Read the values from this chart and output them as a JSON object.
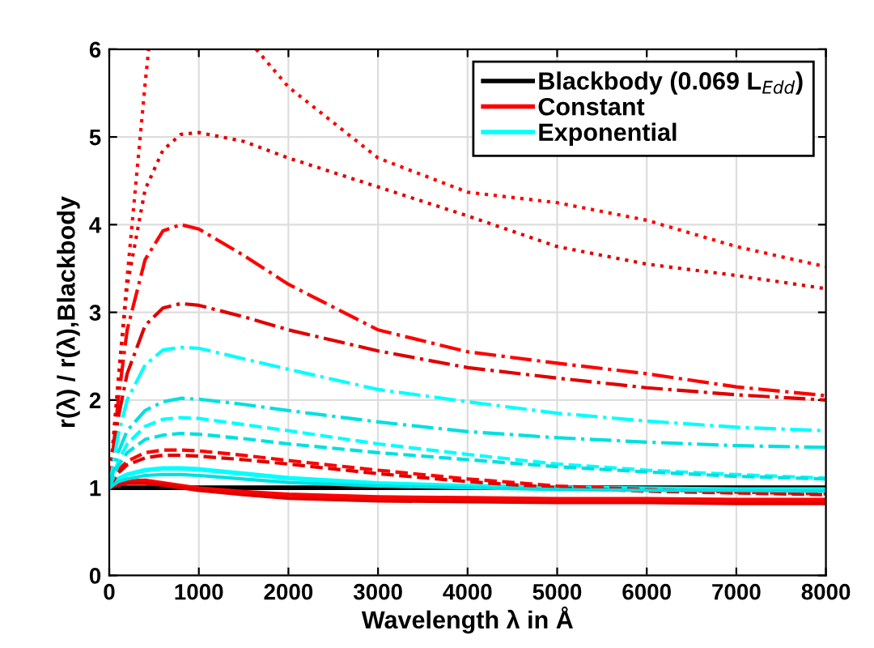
{
  "chart_data": {
    "type": "line",
    "xlabel": "Wavelength λ in Å",
    "ylabel": "r(λ) / r(λ),Blackbody",
    "x": [
      0,
      100,
      200,
      400,
      600,
      800,
      1000,
      1500,
      2000,
      3000,
      4000,
      5000,
      6000,
      7000,
      8000
    ],
    "xlim": [
      0,
      8000
    ],
    "xticks": [
      0,
      1000,
      2000,
      3000,
      4000,
      5000,
      6000,
      7000,
      8000
    ],
    "ylim": [
      0,
      6
    ],
    "yticks": [
      0,
      1,
      2,
      3,
      4,
      5,
      6
    ],
    "grid": true,
    "legend": "top right",
    "series": [
      {
        "name": "Blackbody (0.069 L$_{Edd}$)",
        "color": "#000000",
        "line_style": "solid",
        "values": [
          1,
          1,
          1,
          1,
          1,
          1,
          1,
          1,
          1,
          1,
          1,
          1,
          1,
          1,
          1
        ]
      },
      {
        "name": "Constant",
        "color": "#ff0000",
        "line_style": "solid",
        "values": [
          1,
          1.05,
          1.07,
          1.08,
          1.05,
          1.02,
          0.99,
          0.95,
          0.92,
          0.89,
          0.88,
          0.87,
          0.87,
          0.86,
          0.86
        ]
      },
      {
        "name": "Exponential",
        "color": "#00ffff",
        "line_style": "solid",
        "values": [
          1,
          1.1,
          1.15,
          1.2,
          1.22,
          1.22,
          1.21,
          1.16,
          1.11,
          1.05,
          1.02,
          1.0,
          0.99,
          0.98,
          0.98
        ]
      },
      {
        "color": "#e00000",
        "line_style": "solid",
        "values": [
          1,
          1.03,
          1.05,
          1.05,
          1.03,
          1.0,
          0.97,
          0.92,
          0.88,
          0.85,
          0.84,
          0.83,
          0.83,
          0.82,
          0.82
        ]
      },
      {
        "color": "#ff0000",
        "line_style": "dashed",
        "values": [
          1,
          1.2,
          1.3,
          1.4,
          1.43,
          1.43,
          1.42,
          1.37,
          1.31,
          1.2,
          1.1,
          1.02,
          0.98,
          0.95,
          0.93
        ]
      },
      {
        "color": "#e00000",
        "line_style": "dashed",
        "values": [
          1,
          1.17,
          1.26,
          1.34,
          1.37,
          1.37,
          1.36,
          1.32,
          1.27,
          1.16,
          1.07,
          1.0,
          0.96,
          0.94,
          0.92
        ]
      },
      {
        "color": "#ff0000",
        "line_style": "dashdot",
        "values": [
          1,
          2.0,
          2.8,
          3.6,
          3.93,
          4.0,
          3.95,
          3.65,
          3.32,
          2.8,
          2.55,
          2.42,
          2.3,
          2.15,
          2.05
        ]
      },
      {
        "color": "#e00000",
        "line_style": "dashdot",
        "values": [
          1,
          1.8,
          2.3,
          2.85,
          3.05,
          3.1,
          3.08,
          2.95,
          2.8,
          2.56,
          2.37,
          2.25,
          2.14,
          2.06,
          2.0
        ]
      },
      {
        "color": "#ff0000",
        "line_style": "dotted",
        "x": [
          0,
          100,
          200,
          300,
          400,
          440,
          1000,
          1640,
          2000,
          3000,
          4000,
          5000,
          6000,
          7000,
          8000
        ],
        "values": [
          1,
          2.2,
          3.4,
          4.5,
          5.6,
          6.0,
          null,
          6.0,
          5.57,
          4.76,
          4.37,
          4.25,
          4.05,
          3.75,
          3.52
        ]
      },
      {
        "color": "#e00000",
        "line_style": "dotted",
        "values": [
          1,
          2.2,
          3.3,
          4.4,
          4.85,
          5.03,
          5.05,
          4.95,
          4.76,
          4.43,
          4.1,
          3.75,
          3.55,
          3.42,
          3.27
        ]
      },
      {
        "color": "#00e0e0",
        "line_style": "solid",
        "values": [
          1,
          1.07,
          1.1,
          1.14,
          1.15,
          1.15,
          1.14,
          1.1,
          1.06,
          1.02,
          1.0,
          0.98,
          0.97,
          0.97,
          0.96
        ]
      },
      {
        "color": "#00ffff",
        "line_style": "dashed",
        "values": [
          1,
          1.3,
          1.5,
          1.7,
          1.78,
          1.8,
          1.79,
          1.72,
          1.65,
          1.5,
          1.38,
          1.27,
          1.2,
          1.15,
          1.11
        ]
      },
      {
        "color": "#00e0e0",
        "line_style": "dashed",
        "values": [
          1,
          1.25,
          1.4,
          1.55,
          1.6,
          1.62,
          1.61,
          1.56,
          1.5,
          1.4,
          1.32,
          1.24,
          1.18,
          1.13,
          1.1
        ]
      },
      {
        "color": "#00ffff",
        "line_style": "dashdot",
        "values": [
          1,
          1.6,
          2.0,
          2.4,
          2.57,
          2.6,
          2.59,
          2.47,
          2.35,
          2.12,
          1.98,
          1.85,
          1.76,
          1.69,
          1.65
        ]
      },
      {
        "color": "#00e0e0",
        "line_style": "dashdot",
        "values": [
          1,
          1.4,
          1.65,
          1.88,
          1.98,
          2.02,
          2.01,
          1.95,
          1.88,
          1.75,
          1.64,
          1.57,
          1.52,
          1.48,
          1.46
        ]
      }
    ]
  }
}
